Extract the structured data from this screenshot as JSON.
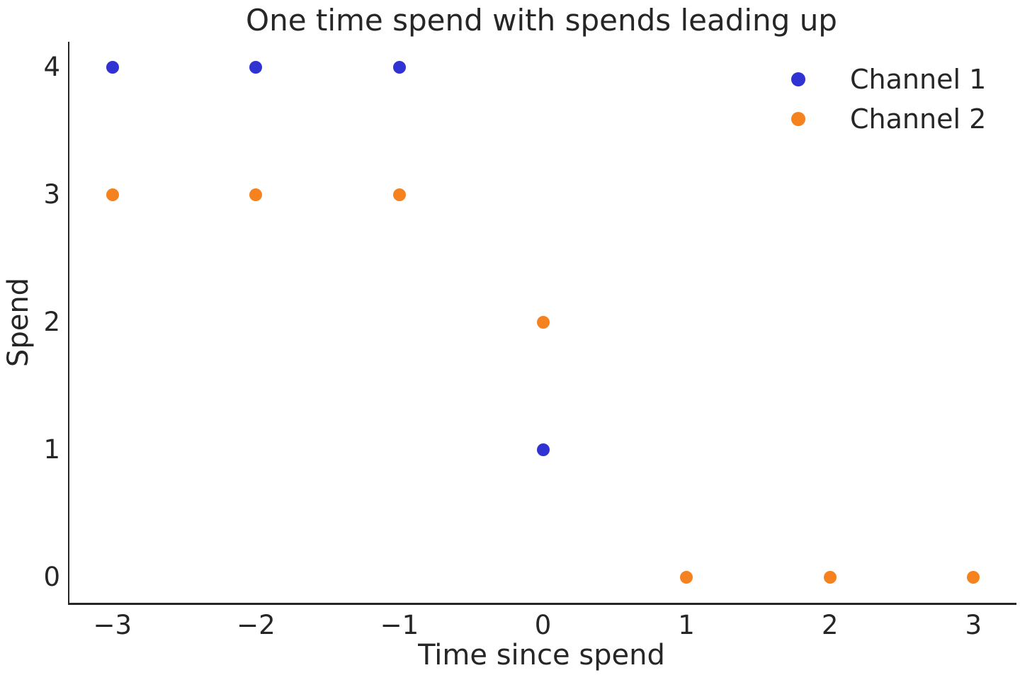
{
  "chart_data": {
    "type": "scatter",
    "title": "One time spend with spends leading up",
    "xlabel": "Time since spend",
    "ylabel": "Spend",
    "xlim": [
      -3.3,
      3.3
    ],
    "ylim": [
      -0.2,
      4.2
    ],
    "grid": false,
    "legend_position": "upper right",
    "background_color": "#ffffff",
    "text_color": "#262626",
    "spine_color": "#262626",
    "x_ticks": [
      {
        "v": -3,
        "label": "−3"
      },
      {
        "v": -2,
        "label": "−2"
      },
      {
        "v": -1,
        "label": "−1"
      },
      {
        "v": 0,
        "label": "0"
      },
      {
        "v": 1,
        "label": "1"
      },
      {
        "v": 2,
        "label": "2"
      },
      {
        "v": 3,
        "label": "3"
      }
    ],
    "y_ticks": [
      {
        "v": 0,
        "label": "0"
      },
      {
        "v": 1,
        "label": "1"
      },
      {
        "v": 2,
        "label": "2"
      },
      {
        "v": 3,
        "label": "3"
      },
      {
        "v": 4,
        "label": "4"
      }
    ],
    "series": [
      {
        "name": "Channel 1",
        "color": "#3132d2",
        "x": [
          -3,
          -2,
          -1,
          0
        ],
        "y": [
          4,
          4,
          4,
          1
        ]
      },
      {
        "name": "Channel 2",
        "color": "#f5821f",
        "x": [
          -3,
          -2,
          -1,
          0,
          1,
          2,
          3
        ],
        "y": [
          3,
          3,
          3,
          2,
          0,
          0,
          0
        ]
      }
    ]
  }
}
